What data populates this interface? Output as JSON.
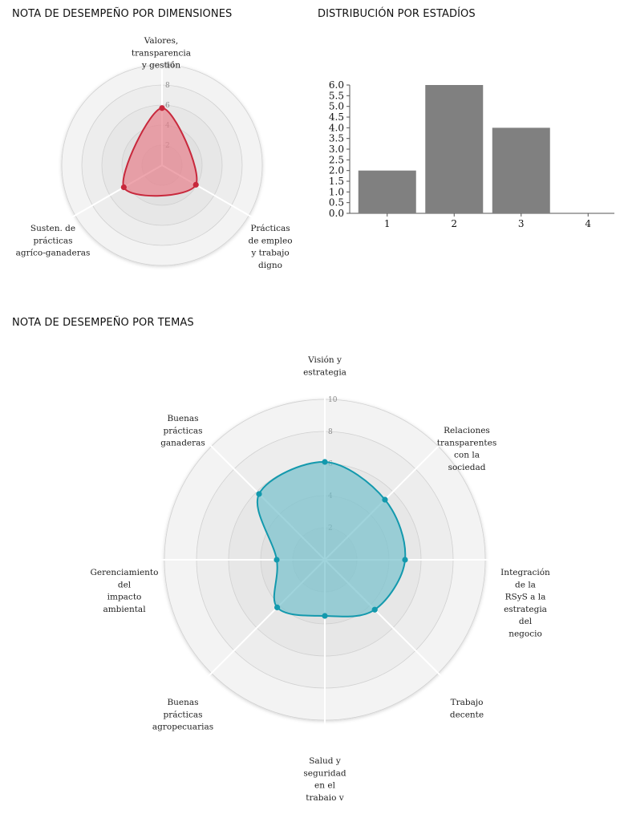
{
  "titles": {
    "dimensiones": "NOTA DE DESEMPEÑO POR DIMENSIONES",
    "estadios": "DISTRIBUCIÓN POR ESTADÍOS",
    "temas": "NOTA DE DESEMPEÑO POR TEMAS"
  },
  "colors": {
    "dimensiones_line": "#c8283c",
    "dimensiones_fill": "#e8848f",
    "temas_line": "#1399ad",
    "temas_fill": "#7cc4cf",
    "bar_fill": "#808080"
  },
  "chart_data": [
    {
      "type": "radar",
      "title": "NOTA DE DESEMPEÑO POR DIMENSIONES",
      "rmax": 10,
      "rticks": [
        "2",
        "4",
        "6",
        "8",
        "10"
      ],
      "axes": [
        [
          "Valores,",
          "transparencia",
          "y gestión"
        ],
        [
          "Prácticas",
          "de empleo",
          "y trabajo",
          "digno"
        ],
        [
          "Susten. de",
          "prácticas",
          "agríco-ganaderas"
        ]
      ],
      "values": [
        5.7,
        3.9,
        4.4
      ]
    },
    {
      "type": "bar",
      "title": "DISTRIBUCIÓN POR ESTADÍOS",
      "categories": [
        "1",
        "2",
        "3",
        "4"
      ],
      "values": [
        2,
        6,
        4,
        0
      ],
      "ylim": [
        0,
        6
      ],
      "yticks": [
        "0.0",
        "0.5",
        "1.0",
        "1.5",
        "2.0",
        "2.5",
        "3.0",
        "3.5",
        "4.0",
        "4.5",
        "5.0",
        "5.5",
        "6.0"
      ]
    },
    {
      "type": "radar",
      "title": "NOTA DE DESEMPEÑO POR TEMAS",
      "rmax": 10,
      "rticks": [
        "2",
        "4",
        "6",
        "8",
        "10"
      ],
      "axes": [
        [
          "Visión y",
          "estrategia"
        ],
        [
          "Relaciones",
          "transparentes",
          "con la",
          "sociedad"
        ],
        [
          "Integración",
          "de la",
          "RSyS a la",
          "estrategia",
          "del",
          "negocio"
        ],
        [
          "Trabajo",
          "decente"
        ],
        [
          "Salud y",
          "seguridad",
          "en el",
          "trabaio v"
        ],
        [
          "Buenas",
          "prácticas",
          "agropecuarias"
        ],
        [
          "Gerenciamiento",
          "del",
          "impacto",
          "ambiental"
        ],
        [
          "Buenas",
          "prácticas",
          "ganaderas"
        ]
      ],
      "values": [
        6.1,
        5.3,
        5.0,
        4.4,
        3.5,
        4.2,
        3.0,
        5.8
      ]
    }
  ]
}
